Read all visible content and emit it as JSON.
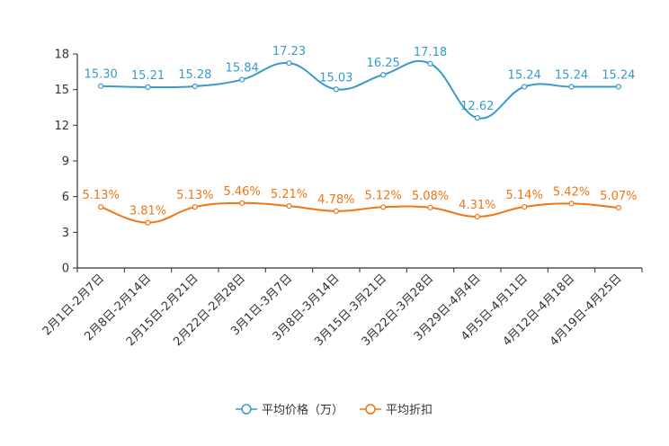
{
  "chart_data": {
    "type": "line",
    "categories": [
      "2月1日-2月7日",
      "2月8日-2月14日",
      "2月15日-2月21日",
      "2月22日-2月28日",
      "3月1日-3月7日",
      "3月8日-3月14日",
      "3月15日-3月21日",
      "3月22日-3月28日",
      "3月29日-4月4日",
      "4月5日-4月11日",
      "4月12日-4月18日",
      "4月19日-4月25日"
    ],
    "y_ticks": [
      0,
      3,
      6,
      9,
      12,
      15,
      18
    ],
    "ylim": [
      0,
      18
    ],
    "grid": false,
    "legend_position": "bottom-center",
    "series": [
      {
        "name": "平均价格（万）",
        "color": "#3a9ac9",
        "values": [
          15.3,
          15.21,
          15.28,
          15.84,
          17.23,
          15.03,
          16.25,
          17.18,
          12.62,
          15.24,
          15.24,
          15.24
        ],
        "labels": [
          "15.30",
          "15.21",
          "15.28",
          "15.84",
          "17.23",
          "15.03",
          "16.25",
          "17.18",
          "12.62",
          "15.24",
          "15.24",
          "15.24"
        ]
      },
      {
        "name": "平均折扣",
        "color": "#f07515",
        "values": [
          5.13,
          3.81,
          5.13,
          5.46,
          5.21,
          4.78,
          5.12,
          5.08,
          4.31,
          5.14,
          5.42,
          5.07
        ],
        "labels": [
          "5.13%",
          "3.81%",
          "5.13%",
          "5.46%",
          "5.21%",
          "4.78%",
          "5.12%",
          "5.08%",
          "4.31%",
          "5.14%",
          "5.42%",
          "5.07%"
        ]
      }
    ]
  }
}
